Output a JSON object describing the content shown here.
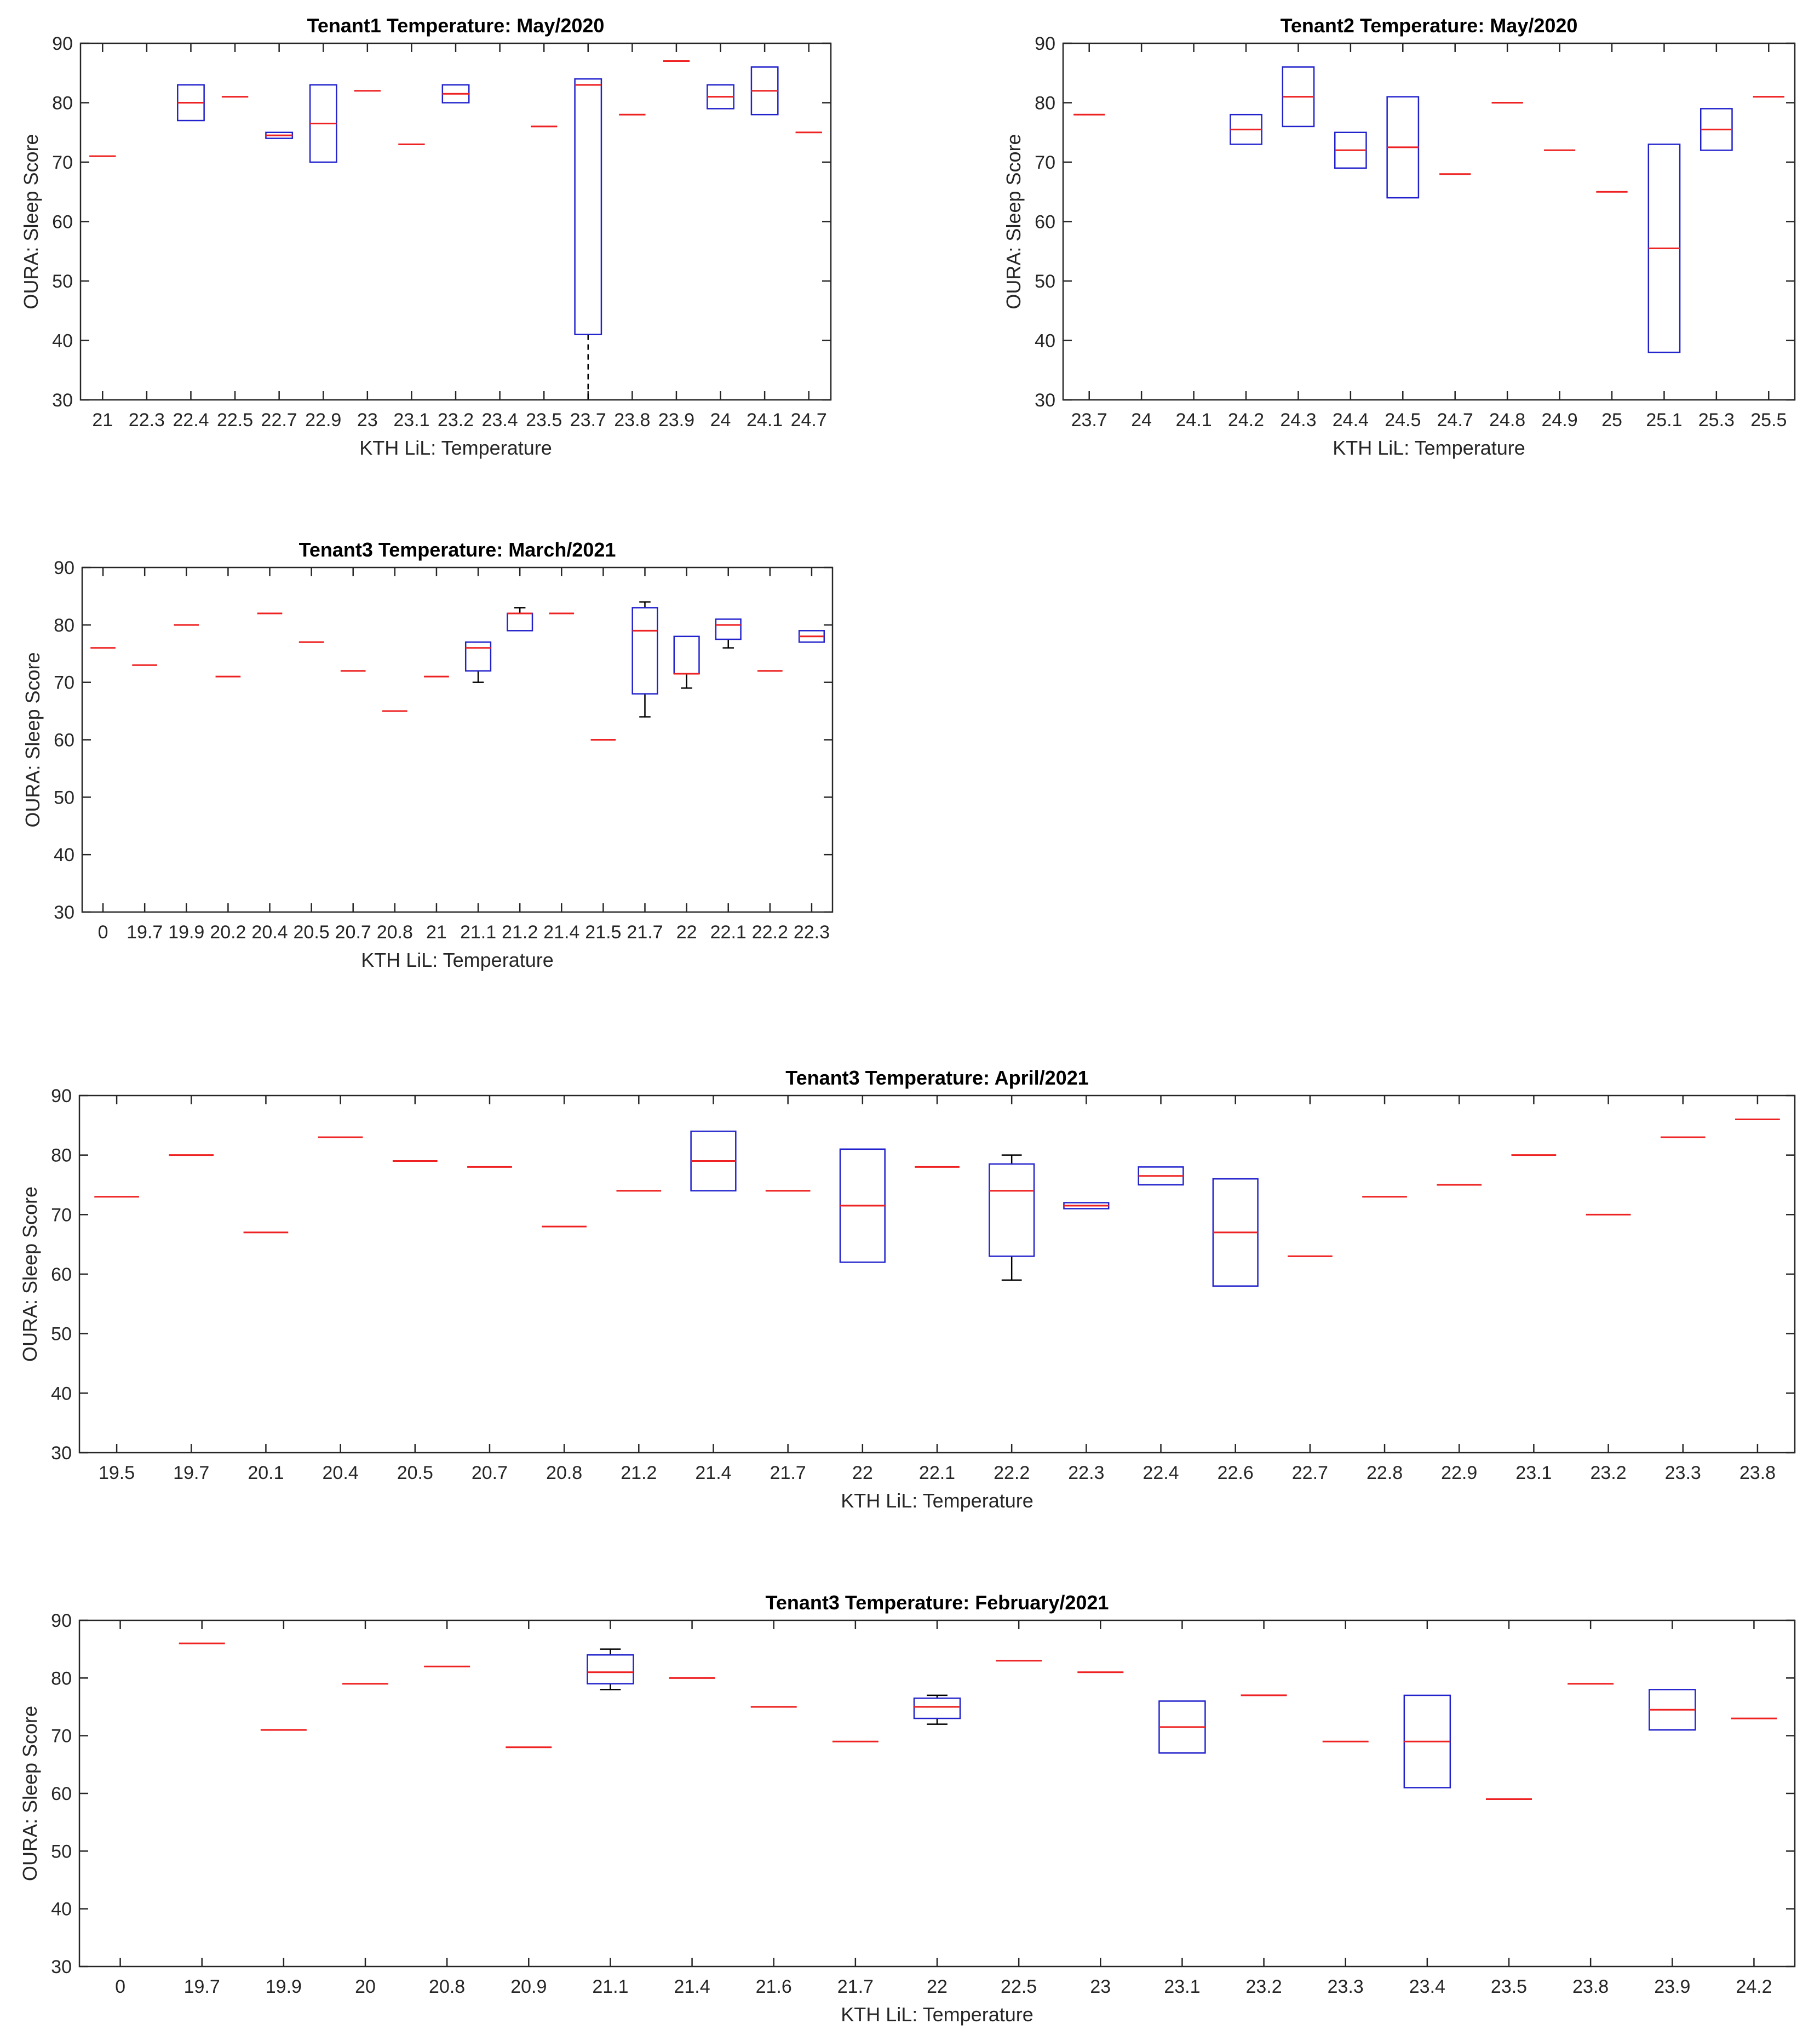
{
  "chart_data": [
    {
      "type": "box",
      "title": "Tenant1 Temperature: May/2020",
      "xlabel": "KTH LiL: Temperature",
      "ylabel": "OURA: Sleep Score",
      "ylim": [
        30,
        90
      ],
      "yticks": [
        30,
        40,
        50,
        60,
        70,
        80,
        90
      ],
      "categories": [
        "21",
        "22.3",
        "22.4",
        "22.5",
        "22.7",
        "22.9",
        "23",
        "23.1",
        "23.2",
        "23.4",
        "23.5",
        "23.7",
        "23.8",
        "23.9",
        "24",
        "24.1",
        "24.7"
      ],
      "boxes": [
        {
          "median": 71,
          "q1": 71,
          "q3": 71,
          "low": 71,
          "high": 71
        },
        null,
        {
          "median": 80,
          "q1": 77,
          "q3": 83,
          "low": 77,
          "high": 83
        },
        {
          "median": 81,
          "q1": 81,
          "q3": 81,
          "low": 81,
          "high": 81
        },
        {
          "median": 74.5,
          "q1": 74,
          "q3": 75,
          "low": 74,
          "high": 75
        },
        {
          "median": 76.5,
          "q1": 70,
          "q3": 83,
          "low": 70,
          "high": 83
        },
        {
          "median": 82,
          "q1": 82,
          "q3": 82,
          "low": 82,
          "high": 82
        },
        {
          "median": 73,
          "q1": 73,
          "q3": 73,
          "low": 73,
          "high": 73
        },
        {
          "median": 81.5,
          "q1": 80,
          "q3": 83,
          "low": 80,
          "high": 83
        },
        null,
        {
          "median": 76,
          "q1": 76,
          "q3": 76,
          "low": 76,
          "high": 76
        },
        {
          "median": 83,
          "q1": 41,
          "q3": 84,
          "low": 30,
          "high": 84
        },
        {
          "median": 78,
          "q1": 78,
          "q3": 78,
          "low": 78,
          "high": 78
        },
        {
          "median": 87,
          "q1": 87,
          "q3": 87,
          "low": 87,
          "high": 87
        },
        {
          "median": 81,
          "q1": 79,
          "q3": 83,
          "low": 79,
          "high": 83
        },
        {
          "median": 82,
          "q1": 78,
          "q3": 86,
          "low": 78,
          "high": 86
        },
        {
          "median": 75,
          "q1": 75,
          "q3": 75,
          "low": 75,
          "high": 75
        }
      ]
    },
    {
      "type": "box",
      "title": "Tenant2 Temperature: May/2020",
      "xlabel": "KTH LiL: Temperature",
      "ylabel": "OURA: Sleep Score",
      "ylim": [
        30,
        90
      ],
      "yticks": [
        30,
        40,
        50,
        60,
        70,
        80,
        90
      ],
      "categories": [
        "23.7",
        "24",
        "24.1",
        "24.2",
        "24.3",
        "24.4",
        "24.5",
        "24.7",
        "24.8",
        "24.9",
        "25",
        "25.1",
        "25.3",
        "25.5"
      ],
      "boxes": [
        {
          "median": 78,
          "q1": 78,
          "q3": 78,
          "low": 78,
          "high": 78
        },
        null,
        null,
        {
          "median": 75.5,
          "q1": 73,
          "q3": 78,
          "low": 73,
          "high": 78
        },
        {
          "median": 81,
          "q1": 76,
          "q3": 86,
          "low": 76,
          "high": 86
        },
        {
          "median": 72,
          "q1": 69,
          "q3": 75,
          "low": 69,
          "high": 75
        },
        {
          "median": 72.5,
          "q1": 64,
          "q3": 81,
          "low": 64,
          "high": 81
        },
        {
          "median": 68,
          "q1": 68,
          "q3": 68,
          "low": 68,
          "high": 68
        },
        {
          "median": 80,
          "q1": 80,
          "q3": 80,
          "low": 80,
          "high": 80
        },
        {
          "median": 72,
          "q1": 72,
          "q3": 72,
          "low": 72,
          "high": 72
        },
        {
          "median": 65,
          "q1": 65,
          "q3": 65,
          "low": 65,
          "high": 65
        },
        {
          "median": 55.5,
          "q1": 38,
          "q3": 73,
          "low": 38,
          "high": 73
        },
        {
          "median": 75.5,
          "q1": 72,
          "q3": 79,
          "low": 72,
          "high": 79
        },
        {
          "median": 81,
          "q1": 81,
          "q3": 81,
          "low": 81,
          "high": 81
        }
      ]
    },
    {
      "type": "box",
      "title": "Tenant3 Temperature: March/2021",
      "xlabel": "KTH LiL: Temperature",
      "ylabel": "OURA: Sleep Score",
      "ylim": [
        30,
        90
      ],
      "yticks": [
        30,
        40,
        50,
        60,
        70,
        80,
        90
      ],
      "categories": [
        "0",
        "19.7",
        "19.9",
        "20.2",
        "20.4",
        "20.5",
        "20.7",
        "20.8",
        "21",
        "21.1",
        "21.2",
        "21.4",
        "21.5",
        "21.7",
        "22",
        "22.1",
        "22.2",
        "22.3"
      ],
      "boxes": [
        {
          "median": 76,
          "q1": 76,
          "q3": 76,
          "low": 76,
          "high": 76
        },
        {
          "median": 73,
          "q1": 73,
          "q3": 73,
          "low": 73,
          "high": 73
        },
        {
          "median": 80,
          "q1": 80,
          "q3": 80,
          "low": 80,
          "high": 80
        },
        {
          "median": 71,
          "q1": 71,
          "q3": 71,
          "low": 71,
          "high": 71
        },
        {
          "median": 82,
          "q1": 82,
          "q3": 82,
          "low": 82,
          "high": 82
        },
        {
          "median": 77,
          "q1": 77,
          "q3": 77,
          "low": 77,
          "high": 77
        },
        {
          "median": 72,
          "q1": 72,
          "q3": 72,
          "low": 72,
          "high": 72
        },
        {
          "median": 65,
          "q1": 65,
          "q3": 65,
          "low": 65,
          "high": 65
        },
        {
          "median": 71,
          "q1": 71,
          "q3": 71,
          "low": 71,
          "high": 71
        },
        {
          "median": 76,
          "q1": 72,
          "q3": 77,
          "low": 70,
          "high": 77
        },
        {
          "median": 82,
          "q1": 79,
          "q3": 82,
          "low": 79,
          "high": 83
        },
        {
          "median": 82,
          "q1": 82,
          "q3": 82,
          "low": 82,
          "high": 82
        },
        {
          "median": 60,
          "q1": 60,
          "q3": 60,
          "low": 60,
          "high": 60
        },
        {
          "median": 79,
          "q1": 68,
          "q3": 83,
          "low": 64,
          "high": 84
        },
        {
          "median": 71.5,
          "q1": 71.5,
          "q3": 78,
          "low": 69,
          "high": 78
        },
        {
          "median": 80,
          "q1": 77.5,
          "q3": 81,
          "low": 76,
          "high": 81
        },
        {
          "median": 72,
          "q1": 72,
          "q3": 72,
          "low": 72,
          "high": 72
        },
        {
          "median": 78,
          "q1": 77,
          "q3": 79,
          "low": 77,
          "high": 79
        }
      ]
    },
    {
      "type": "box",
      "title": "Tenant3 Temperature: April/2021",
      "xlabel": "KTH LiL: Temperature",
      "ylabel": "OURA: Sleep Score",
      "ylim": [
        30,
        90
      ],
      "yticks": [
        30,
        40,
        50,
        60,
        70,
        80,
        90
      ],
      "categories": [
        "19.5",
        "19.7",
        "20.1",
        "20.4",
        "20.5",
        "20.7",
        "20.8",
        "21.2",
        "21.4",
        "21.7",
        "22",
        "22.1",
        "22.2",
        "22.3",
        "22.4",
        "22.6",
        "22.7",
        "22.8",
        "22.9",
        "23.1",
        "23.2",
        "23.3",
        "23.8"
      ],
      "boxes": [
        {
          "median": 73,
          "q1": 73,
          "q3": 73,
          "low": 73,
          "high": 73
        },
        {
          "median": 80,
          "q1": 80,
          "q3": 80,
          "low": 80,
          "high": 80
        },
        {
          "median": 67,
          "q1": 67,
          "q3": 67,
          "low": 67,
          "high": 67
        },
        {
          "median": 83,
          "q1": 83,
          "q3": 83,
          "low": 83,
          "high": 83
        },
        {
          "median": 79,
          "q1": 79,
          "q3": 79,
          "low": 79,
          "high": 79
        },
        {
          "median": 78,
          "q1": 78,
          "q3": 78,
          "low": 78,
          "high": 78
        },
        {
          "median": 68,
          "q1": 68,
          "q3": 68,
          "low": 68,
          "high": 68
        },
        {
          "median": 74,
          "q1": 74,
          "q3": 74,
          "low": 74,
          "high": 74
        },
        {
          "median": 79,
          "q1": 74,
          "q3": 84,
          "low": 74,
          "high": 84
        },
        {
          "median": 74,
          "q1": 74,
          "q3": 74,
          "low": 74,
          "high": 74
        },
        {
          "median": 71.5,
          "q1": 62,
          "q3": 81,
          "low": 62,
          "high": 81
        },
        {
          "median": 78,
          "q1": 78,
          "q3": 78,
          "low": 78,
          "high": 78
        },
        {
          "median": 74,
          "q1": 63,
          "q3": 78.5,
          "low": 59,
          "high": 80
        },
        {
          "median": 71.5,
          "q1": 71,
          "q3": 72,
          "low": 71,
          "high": 72
        },
        {
          "median": 76.5,
          "q1": 75,
          "q3": 78,
          "low": 75,
          "high": 78
        },
        {
          "median": 67,
          "q1": 58,
          "q3": 76,
          "low": 58,
          "high": 76
        },
        {
          "median": 63,
          "q1": 63,
          "q3": 63,
          "low": 63,
          "high": 63
        },
        {
          "median": 73,
          "q1": 73,
          "q3": 73,
          "low": 73,
          "high": 73
        },
        {
          "median": 75,
          "q1": 75,
          "q3": 75,
          "low": 75,
          "high": 75
        },
        {
          "median": 80,
          "q1": 80,
          "q3": 80,
          "low": 80,
          "high": 80
        },
        {
          "median": 70,
          "q1": 70,
          "q3": 70,
          "low": 70,
          "high": 70
        },
        {
          "median": 83,
          "q1": 83,
          "q3": 83,
          "low": 83,
          "high": 83
        },
        {
          "median": 86,
          "q1": 86,
          "q3": 86,
          "low": 86,
          "high": 86
        }
      ]
    },
    {
      "type": "box",
      "title": "Tenant3 Temperature: February/2021",
      "xlabel": "KTH LiL: Temperature",
      "ylabel": "OURA: Sleep Score",
      "ylim": [
        30,
        90
      ],
      "yticks": [
        30,
        40,
        50,
        60,
        70,
        80,
        90
      ],
      "categories": [
        "0",
        "19.7",
        "19.9",
        "20",
        "20.8",
        "20.9",
        "21.1",
        "21.4",
        "21.6",
        "21.7",
        "22",
        "22.5",
        "23",
        "23.1",
        "23.2",
        "23.3",
        "23.4",
        "23.5",
        "23.8",
        "23.9",
        "24.2"
      ],
      "boxes": [
        null,
        {
          "median": 86,
          "q1": 86,
          "q3": 86,
          "low": 86,
          "high": 86
        },
        {
          "median": 71,
          "q1": 71,
          "q3": 71,
          "low": 71,
          "high": 71
        },
        {
          "median": 79,
          "q1": 79,
          "q3": 79,
          "low": 79,
          "high": 79
        },
        {
          "median": 82,
          "q1": 82,
          "q3": 82,
          "low": 82,
          "high": 82
        },
        {
          "median": 68,
          "q1": 68,
          "q3": 68,
          "low": 68,
          "high": 68
        },
        {
          "median": 81,
          "q1": 79,
          "q3": 84,
          "low": 78,
          "high": 85
        },
        {
          "median": 80,
          "q1": 80,
          "q3": 80,
          "low": 80,
          "high": 80
        },
        {
          "median": 75,
          "q1": 75,
          "q3": 75,
          "low": 75,
          "high": 75
        },
        {
          "median": 69,
          "q1": 69,
          "q3": 69,
          "low": 69,
          "high": 69
        },
        {
          "median": 75,
          "q1": 73,
          "q3": 76.5,
          "low": 72,
          "high": 77
        },
        {
          "median": 83,
          "q1": 83,
          "q3": 83,
          "low": 83,
          "high": 83
        },
        {
          "median": 81,
          "q1": 81,
          "q3": 81,
          "low": 81,
          "high": 81
        },
        {
          "median": 71.5,
          "q1": 67,
          "q3": 76,
          "low": 67,
          "high": 76
        },
        {
          "median": 77,
          "q1": 77,
          "q3": 77,
          "low": 77,
          "high": 77
        },
        {
          "median": 69,
          "q1": 69,
          "q3": 69,
          "low": 69,
          "high": 69
        },
        {
          "median": 69,
          "q1": 61,
          "q3": 77,
          "low": 61,
          "high": 77
        },
        {
          "median": 59,
          "q1": 59,
          "q3": 59,
          "low": 59,
          "high": 59
        },
        {
          "median": 79,
          "q1": 79,
          "q3": 79,
          "low": 79,
          "high": 79
        },
        {
          "median": 74.5,
          "q1": 71,
          "q3": 78,
          "low": 71,
          "high": 78
        },
        {
          "median": 73,
          "q1": 73,
          "q3": 73,
          "low": 73,
          "high": 73
        }
      ]
    }
  ],
  "colors": {
    "box": "#2222cc",
    "median": "#ee2222",
    "whisker": "#000000",
    "axis": "#262626"
  }
}
